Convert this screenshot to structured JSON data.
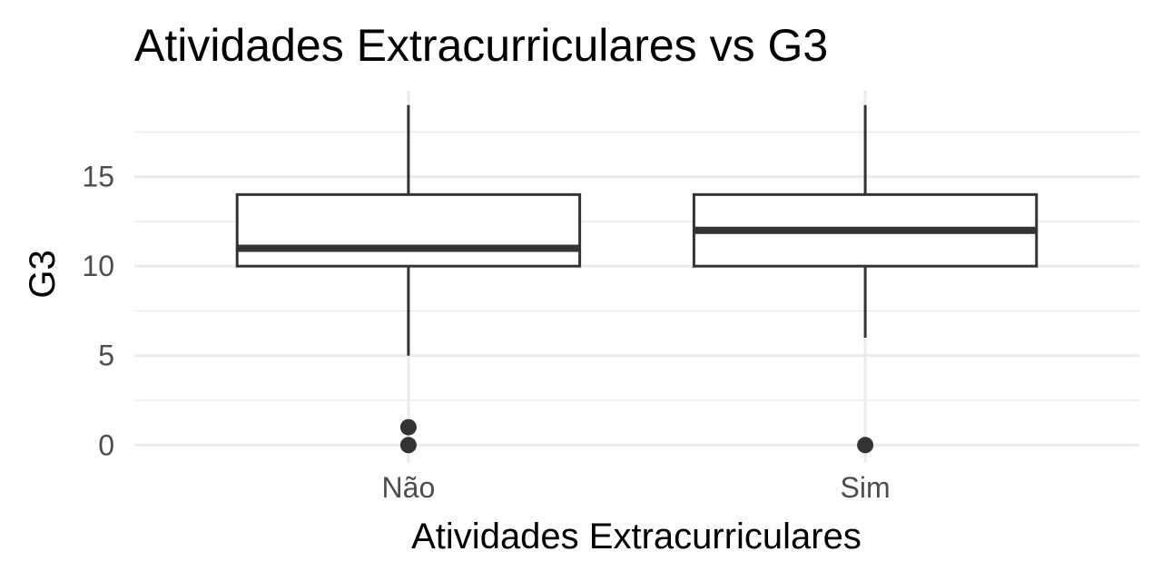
{
  "chart_data": {
    "type": "boxplot",
    "title": "Atividades Extracurriculares vs  G3",
    "xlabel": "Atividades Extracurriculares",
    "ylabel": "G3",
    "categories": [
      "Não",
      "Sim"
    ],
    "boxes": [
      {
        "category": "Não",
        "whisker_low": 5,
        "q1": 10,
        "median": 11,
        "q3": 14,
        "whisker_high": 19,
        "outliers": [
          0,
          1
        ]
      },
      {
        "category": "Sim",
        "whisker_low": 6,
        "q1": 10,
        "median": 12,
        "q3": 14,
        "whisker_high": 19,
        "outliers": [
          0
        ]
      }
    ],
    "yticks": [
      0,
      5,
      10,
      15
    ],
    "ylim": [
      -1,
      19.8
    ],
    "grid": true,
    "colors": {
      "box_stroke": "#333333",
      "grid": "#ebebeb",
      "tick_text": "#4d4d4d"
    }
  }
}
